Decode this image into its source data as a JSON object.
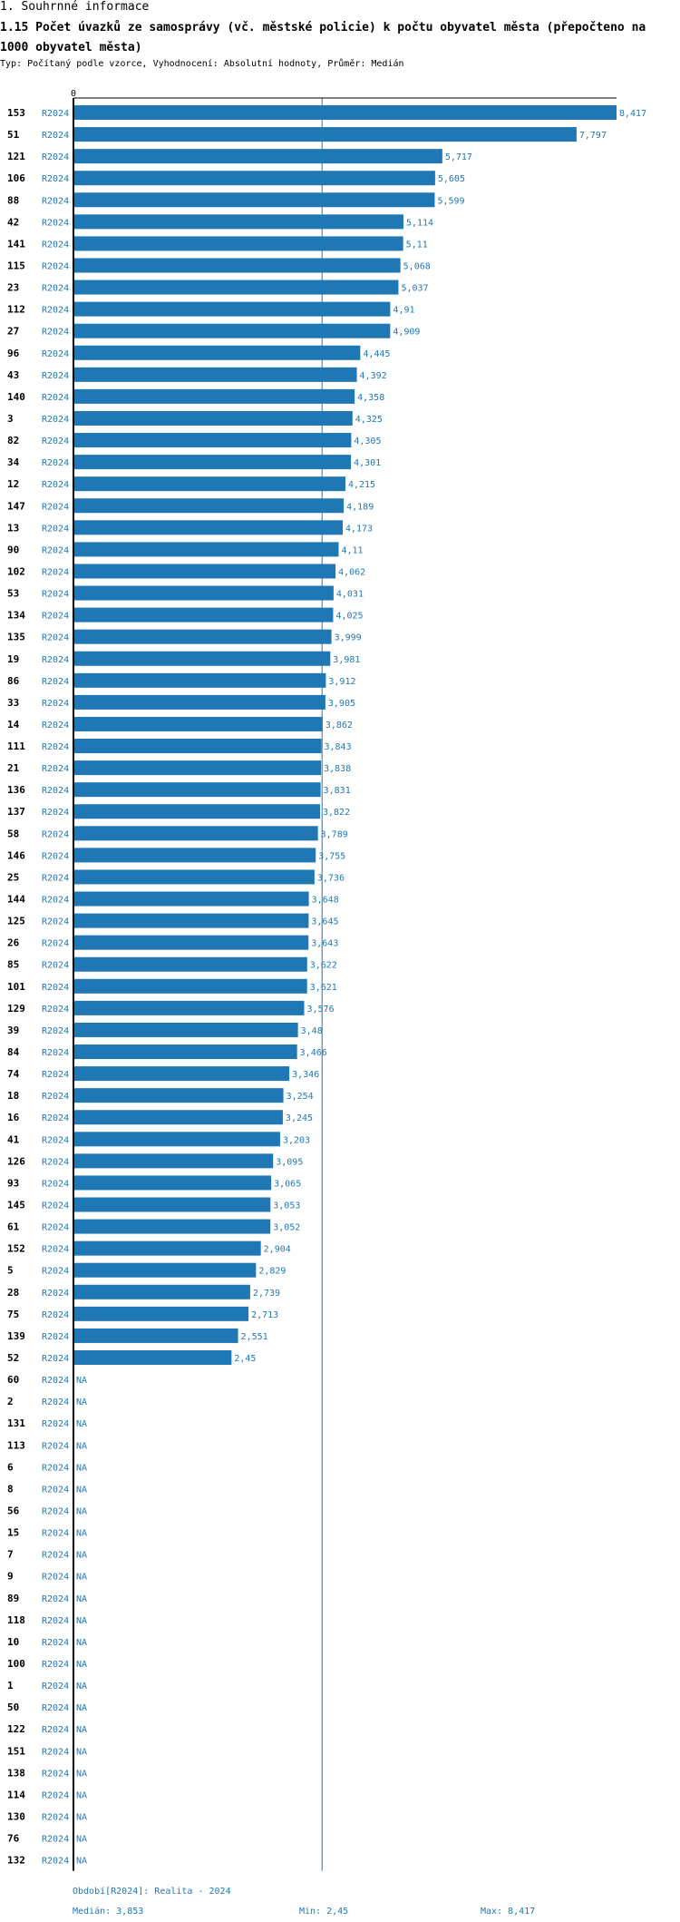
{
  "header": {
    "section": "1. Souhrnné informace",
    "title": "1.15 Počet úvazků ze samosprávy (vč. městské policie) k počtu obyvatel města (přepočteno na 1000 obyvatel města)",
    "subtitle": "Typ: Počítaný podle vzorce, Vyhodnocení: Absolutní hodnoty, Průměr: Medián"
  },
  "colors": {
    "bar": "#1f77b4",
    "label": "#1f77b4",
    "axis": "#000000",
    "median_line": "#1f77b4"
  },
  "chart_data": {
    "type": "bar",
    "orientation": "horizontal",
    "axis_zero_label": "0",
    "xlim": [
      0,
      8.417
    ],
    "period_label": "R2024",
    "na_label": "NA",
    "categories": [
      "153",
      "51",
      "121",
      "106",
      "88",
      "42",
      "141",
      "115",
      "23",
      "112",
      "27",
      "96",
      "43",
      "140",
      "3",
      "82",
      "34",
      "12",
      "147",
      "13",
      "90",
      "102",
      "53",
      "134",
      "135",
      "19",
      "86",
      "33",
      "14",
      "111",
      "21",
      "136",
      "137",
      "58",
      "146",
      "25",
      "144",
      "125",
      "26",
      "85",
      "101",
      "129",
      "39",
      "84",
      "74",
      "18",
      "16",
      "41",
      "126",
      "93",
      "145",
      "61",
      "152",
      "5",
      "28",
      "75",
      "139",
      "52",
      "60",
      "2",
      "131",
      "113",
      "6",
      "8",
      "56",
      "15",
      "7",
      "9",
      "89",
      "118",
      "10",
      "100",
      "1",
      "50",
      "122",
      "151",
      "138",
      "114",
      "130",
      "76",
      "132"
    ],
    "values": [
      8.417,
      7.797,
      5.717,
      5.605,
      5.599,
      5.114,
      5.11,
      5.068,
      5.037,
      4.91,
      4.909,
      4.445,
      4.392,
      4.358,
      4.325,
      4.305,
      4.301,
      4.215,
      4.189,
      4.173,
      4.11,
      4.062,
      4.031,
      4.025,
      3.999,
      3.981,
      3.912,
      3.905,
      3.862,
      3.843,
      3.838,
      3.831,
      3.822,
      3.789,
      3.755,
      3.736,
      3.648,
      3.645,
      3.643,
      3.622,
      3.621,
      3.576,
      3.48,
      3.466,
      3.346,
      3.254,
      3.245,
      3.203,
      3.095,
      3.065,
      3.053,
      3.052,
      2.904,
      2.829,
      2.739,
      2.713,
      2.551,
      2.45,
      null,
      null,
      null,
      null,
      null,
      null,
      null,
      null,
      null,
      null,
      null,
      null,
      null,
      null,
      null,
      null,
      null,
      null,
      null,
      null,
      null,
      null,
      null
    ],
    "value_labels": [
      "8,417",
      "7,797",
      "5,717",
      "5,605",
      "5,599",
      "5,114",
      "5,11",
      "5,068",
      "5,037",
      "4,91",
      "4,909",
      "4,445",
      "4,392",
      "4,358",
      "4,325",
      "4,305",
      "4,301",
      "4,215",
      "4,189",
      "4,173",
      "4,11",
      "4,062",
      "4,031",
      "4,025",
      "3,999",
      "3,981",
      "3,912",
      "3,905",
      "3,862",
      "3,843",
      "3,838",
      "3,831",
      "3,822",
      "3,789",
      "3,755",
      "3,736",
      "3,648",
      "3,645",
      "3,643",
      "3,622",
      "3,621",
      "3,576",
      "3,48",
      "3,466",
      "3,346",
      "3,254",
      "3,245",
      "3,203",
      "3,095",
      "3,065",
      "3,053",
      "3,052",
      "2,904",
      "2,829",
      "2,739",
      "2,713",
      "2,551",
      "2,45",
      "NA",
      "NA",
      "NA",
      "NA",
      "NA",
      "NA",
      "NA",
      "NA",
      "NA",
      "NA",
      "NA",
      "NA",
      "NA",
      "NA",
      "NA",
      "NA",
      "NA",
      "NA",
      "NA",
      "NA",
      "NA",
      "NA",
      "NA"
    ],
    "median": 3.853
  },
  "footer": {
    "period": "Období[R2024]: Realita - 2024",
    "median": "Medián: 3,853",
    "min": "Min: 2,45",
    "max": "Max: 8,417"
  }
}
